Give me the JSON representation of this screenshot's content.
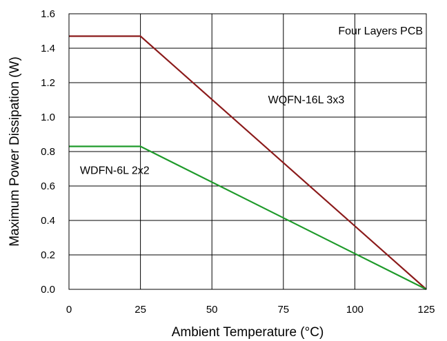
{
  "chart_data": {
    "type": "line",
    "xlabel": "Ambient Temperature (°C)",
    "ylabel": "Maximum Power Dissipation (W)",
    "xlim": [
      0,
      125
    ],
    "ylim": [
      0,
      1.6
    ],
    "x_ticks": [
      "0",
      "25",
      "50",
      "75",
      "100",
      "125"
    ],
    "y_ticks": [
      "0.0",
      "0.2",
      "0.4",
      "0.6",
      "0.8",
      "1.0",
      "1.2",
      "1.4",
      "1.6"
    ],
    "grid": true,
    "series": [
      {
        "name": "WQFN-16L 3x3",
        "color": "#8b1a1a",
        "x": [
          0,
          25,
          125
        ],
        "y": [
          1.47,
          1.47,
          0
        ]
      },
      {
        "name": "WDFN-6L 2x2",
        "color": "#1e9a2a",
        "x": [
          0,
          25,
          125
        ],
        "y": [
          0.83,
          0.83,
          0
        ]
      }
    ],
    "annotations": [
      {
        "text": "Four Layers PCB",
        "x": 109,
        "y": 1.48
      },
      {
        "text": "WQFN-16L 3x3",
        "x": 83,
        "y": 1.08
      },
      {
        "text": "WDFN-6L 2x2",
        "x": 16,
        "y": 0.67
      }
    ]
  }
}
